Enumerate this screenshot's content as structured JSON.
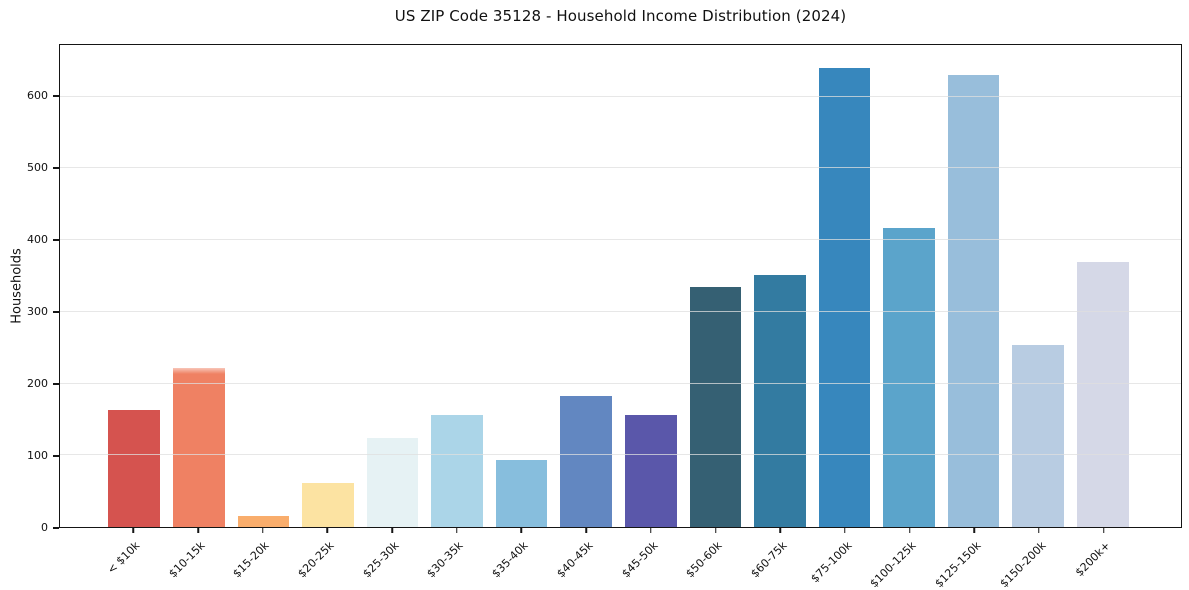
{
  "chart_data": {
    "type": "bar",
    "title": "US ZIP Code 35128 - Household Income Distribution (2024)",
    "xlabel": "",
    "ylabel": "Households",
    "categories": [
      "< $10k",
      "$10-15k",
      "$15-20k",
      "$20-25k",
      "$25-30k",
      "$30-35k",
      "$35-40k",
      "$40-45k",
      "$45-50k",
      "$50-60k",
      "$60-75k",
      "$75-100k",
      "$100-125k",
      "$125-150k",
      "$150-200k",
      "$200k+"
    ],
    "values": [
      163,
      222,
      15,
      61,
      124,
      156,
      94,
      182,
      156,
      334,
      352,
      640,
      417,
      630,
      254,
      369
    ],
    "bar_colors": [
      "#d5534f",
      "#ef8163",
      "#f9ad6c",
      "#fce3a2",
      "#e6f2f4",
      "#abd5e8",
      "#87bedd",
      "#6287c1",
      "#5a57aa",
      "#356073",
      "#337ba1",
      "#3787bd",
      "#5ba4cb",
      "#98bedb",
      "#b8cce2",
      "#d5d8e7"
    ],
    "yticks": [
      0,
      100,
      200,
      300,
      400,
      500,
      600
    ],
    "ylim": [
      0,
      672
    ],
    "grid": "horizontal-y-only",
    "legend": "none",
    "background_color": "#ffffff",
    "grid_color": "#e7e7e7",
    "spine_color": "#151515"
  }
}
